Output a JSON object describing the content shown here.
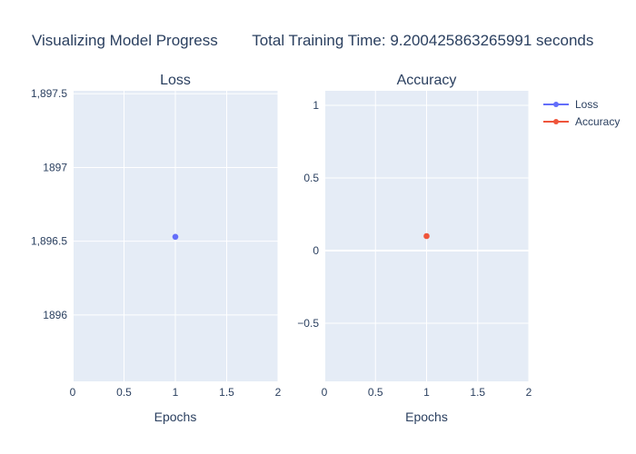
{
  "title": "Visualizing Model Progress        Total Training Time: 9.200425863265991 seconds",
  "colors": {
    "plot_bg": "#e5ecf6",
    "grid": "#ffffff",
    "text": "#2a3f5f",
    "loss": "#636efa",
    "accuracy": "#ef553b"
  },
  "chart_data": [
    {
      "type": "scatter",
      "title": "Loss",
      "xlabel": "Epochs",
      "ylabel": "",
      "xlim": [
        0,
        2
      ],
      "ylim": [
        1895.55,
        1897.52
      ],
      "x_ticks": [
        0,
        0.5,
        1,
        1.5,
        2
      ],
      "x_tick_labels": [
        "0",
        "0.5",
        "1",
        "1.5",
        "2"
      ],
      "y_ticks": [
        1896,
        1896.5,
        1897,
        1897.5
      ],
      "y_tick_labels": [
        "1896",
        "1,896.5",
        "1897",
        "1,897.5"
      ],
      "grid": true,
      "series": [
        {
          "name": "Loss",
          "color": "#636efa",
          "x": [
            1
          ],
          "y": [
            1896.53
          ]
        }
      ]
    },
    {
      "type": "scatter",
      "title": "Accuracy",
      "xlabel": "Epochs",
      "ylabel": "",
      "xlim": [
        0,
        2
      ],
      "ylim": [
        -0.9,
        1.1
      ],
      "x_ticks": [
        0,
        0.5,
        1,
        1.5,
        2
      ],
      "x_tick_labels": [
        "0",
        "0.5",
        "1",
        "1.5",
        "2"
      ],
      "y_ticks": [
        -0.5,
        0,
        0.5,
        1
      ],
      "y_tick_labels": [
        "−0.5",
        "0",
        "0.5",
        "1"
      ],
      "grid": true,
      "series": [
        {
          "name": "Accuracy",
          "color": "#ef553b",
          "x": [
            1
          ],
          "y": [
            0.1
          ]
        }
      ]
    }
  ],
  "legend": {
    "position": "top-right",
    "items": [
      {
        "label": "Loss",
        "color": "#636efa"
      },
      {
        "label": "Accuracy",
        "color": "#ef553b"
      }
    ]
  }
}
